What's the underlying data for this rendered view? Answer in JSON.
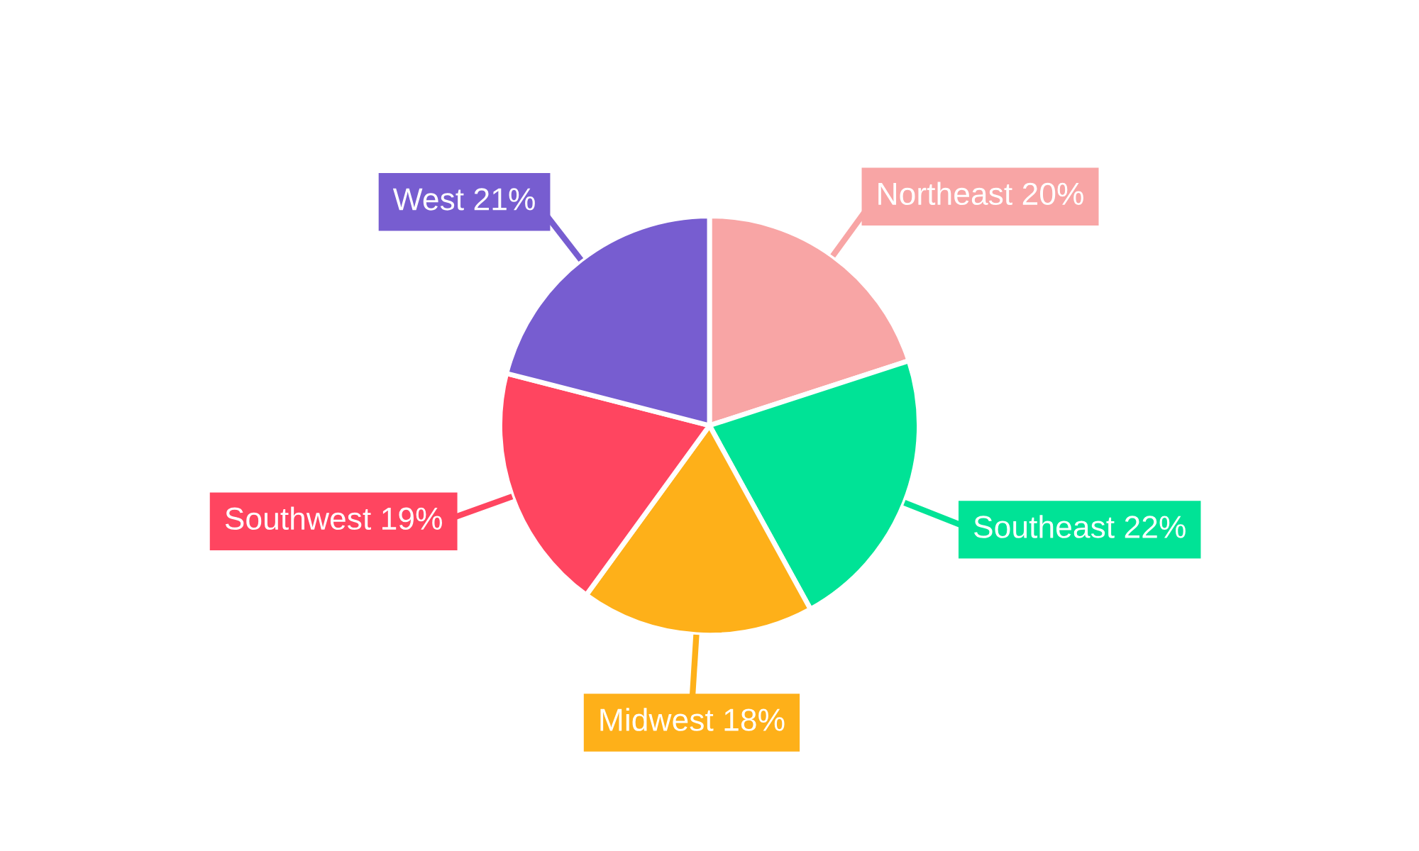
{
  "chart_data": {
    "type": "pie",
    "categories": [
      "Northeast",
      "Southeast",
      "Midwest",
      "Southwest",
      "West"
    ],
    "values": [
      20,
      22,
      18,
      19,
      21
    ],
    "value_labels": [
      "20%",
      "22%",
      "18%",
      "19%",
      "21%"
    ],
    "colors": [
      "#f8a5a5",
      "#00e396",
      "#feb019",
      "#ff4560",
      "#775dd0"
    ],
    "legend": false
  }
}
